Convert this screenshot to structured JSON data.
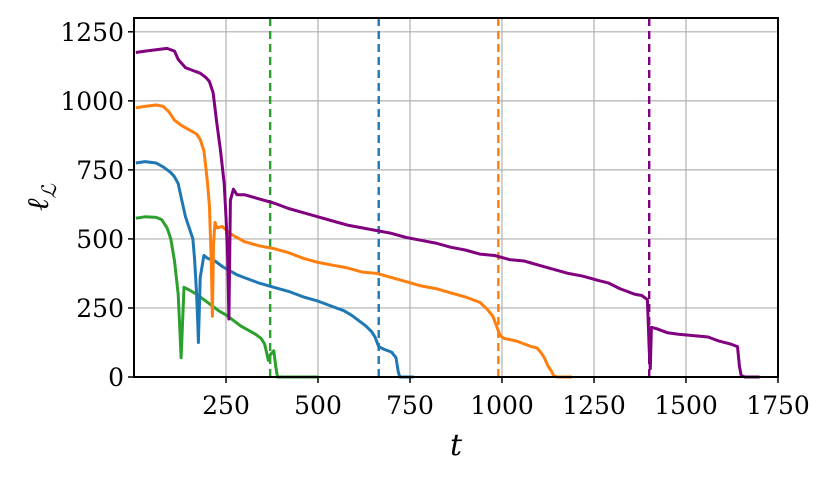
{
  "chart_data": {
    "type": "line",
    "xlabel": "t",
    "ylabel": "ℓ_L",
    "xlim": [
      0,
      1750
    ],
    "ylim": [
      0,
      1300
    ],
    "xticks": [
      250,
      500,
      750,
      1000,
      1250,
      1500,
      1750
    ],
    "yticks": [
      0,
      250,
      500,
      750,
      1000,
      1250
    ],
    "grid": true,
    "colors": {
      "purple": "#800080",
      "orange": "#ff7f0e",
      "blue": "#1f77b4",
      "green": "#2ca02c"
    },
    "series": [
      {
        "color": "#2ca02c",
        "points": [
          [
            5,
            575
          ],
          [
            30,
            580
          ],
          [
            60,
            578
          ],
          [
            75,
            570
          ],
          [
            90,
            540
          ],
          [
            100,
            500
          ],
          [
            110,
            420
          ],
          [
            120,
            300
          ],
          [
            125,
            160
          ],
          [
            128,
            70
          ],
          [
            132,
            200
          ],
          [
            136,
            325
          ],
          [
            150,
            315
          ],
          [
            170,
            300
          ],
          [
            190,
            280
          ],
          [
            210,
            260
          ],
          [
            230,
            240
          ],
          [
            250,
            225
          ],
          [
            270,
            205
          ],
          [
            290,
            185
          ],
          [
            310,
            170
          ],
          [
            330,
            155
          ],
          [
            345,
            140
          ],
          [
            355,
            120
          ],
          [
            360,
            90
          ],
          [
            365,
            60
          ],
          [
            370,
            80
          ],
          [
            380,
            95
          ],
          [
            385,
            40
          ],
          [
            390,
            0
          ],
          [
            500,
            0
          ]
        ]
      },
      {
        "color": "#1f77b4",
        "points": [
          [
            5,
            775
          ],
          [
            30,
            780
          ],
          [
            60,
            775
          ],
          [
            80,
            760
          ],
          [
            100,
            740
          ],
          [
            110,
            725
          ],
          [
            120,
            700
          ],
          [
            130,
            640
          ],
          [
            140,
            580
          ],
          [
            150,
            540
          ],
          [
            160,
            500
          ],
          [
            165,
            420
          ],
          [
            170,
            300
          ],
          [
            173,
            200
          ],
          [
            175,
            125
          ],
          [
            180,
            360
          ],
          [
            190,
            440
          ],
          [
            200,
            430
          ],
          [
            220,
            420
          ],
          [
            240,
            400
          ],
          [
            260,
            385
          ],
          [
            280,
            370
          ],
          [
            300,
            360
          ],
          [
            340,
            340
          ],
          [
            380,
            325
          ],
          [
            420,
            310
          ],
          [
            460,
            290
          ],
          [
            500,
            275
          ],
          [
            540,
            255
          ],
          [
            570,
            240
          ],
          [
            590,
            225
          ],
          [
            610,
            205
          ],
          [
            630,
            185
          ],
          [
            645,
            165
          ],
          [
            655,
            145
          ],
          [
            665,
            110
          ],
          [
            680,
            100
          ],
          [
            700,
            90
          ],
          [
            712,
            70
          ],
          [
            718,
            20
          ],
          [
            722,
            0
          ],
          [
            760,
            0
          ]
        ]
      },
      {
        "color": "#ff7f0e",
        "points": [
          [
            5,
            975
          ],
          [
            30,
            980
          ],
          [
            60,
            985
          ],
          [
            80,
            980
          ],
          [
            95,
            960
          ],
          [
            110,
            930
          ],
          [
            130,
            910
          ],
          [
            150,
            895
          ],
          [
            170,
            880
          ],
          [
            180,
            860
          ],
          [
            190,
            820
          ],
          [
            195,
            760
          ],
          [
            200,
            700
          ],
          [
            205,
            620
          ],
          [
            210,
            420
          ],
          [
            213,
            220
          ],
          [
            216,
            480
          ],
          [
            220,
            560
          ],
          [
            225,
            540
          ],
          [
            240,
            545
          ],
          [
            260,
            520
          ],
          [
            300,
            490
          ],
          [
            340,
            475
          ],
          [
            380,
            465
          ],
          [
            420,
            450
          ],
          [
            460,
            430
          ],
          [
            500,
            415
          ],
          [
            540,
            405
          ],
          [
            580,
            395
          ],
          [
            620,
            380
          ],
          [
            660,
            375
          ],
          [
            700,
            360
          ],
          [
            740,
            345
          ],
          [
            780,
            330
          ],
          [
            820,
            320
          ],
          [
            860,
            305
          ],
          [
            900,
            290
          ],
          [
            940,
            270
          ],
          [
            960,
            245
          ],
          [
            975,
            220
          ],
          [
            985,
            185
          ],
          [
            995,
            150
          ],
          [
            1005,
            140
          ],
          [
            1040,
            130
          ],
          [
            1060,
            120
          ],
          [
            1080,
            110
          ],
          [
            1095,
            105
          ],
          [
            1105,
            90
          ],
          [
            1115,
            70
          ],
          [
            1125,
            40
          ],
          [
            1135,
            20
          ],
          [
            1140,
            5
          ],
          [
            1150,
            0
          ],
          [
            1190,
            0
          ]
        ]
      },
      {
        "color": "#800080",
        "points": [
          [
            5,
            1175
          ],
          [
            30,
            1180
          ],
          [
            60,
            1185
          ],
          [
            90,
            1190
          ],
          [
            110,
            1180
          ],
          [
            120,
            1150
          ],
          [
            140,
            1120
          ],
          [
            160,
            1110
          ],
          [
            180,
            1100
          ],
          [
            195,
            1085
          ],
          [
            205,
            1070
          ],
          [
            215,
            1030
          ],
          [
            225,
            920
          ],
          [
            235,
            820
          ],
          [
            245,
            700
          ],
          [
            250,
            580
          ],
          [
            255,
            420
          ],
          [
            258,
            210
          ],
          [
            262,
            640
          ],
          [
            270,
            680
          ],
          [
            280,
            660
          ],
          [
            300,
            660
          ],
          [
            340,
            645
          ],
          [
            380,
            630
          ],
          [
            420,
            610
          ],
          [
            460,
            595
          ],
          [
            500,
            580
          ],
          [
            540,
            565
          ],
          [
            580,
            550
          ],
          [
            620,
            540
          ],
          [
            660,
            530
          ],
          [
            700,
            520
          ],
          [
            740,
            505
          ],
          [
            780,
            495
          ],
          [
            820,
            485
          ],
          [
            860,
            470
          ],
          [
            900,
            460
          ],
          [
            940,
            445
          ],
          [
            980,
            440
          ],
          [
            1020,
            425
          ],
          [
            1060,
            420
          ],
          [
            1100,
            405
          ],
          [
            1140,
            390
          ],
          [
            1180,
            375
          ],
          [
            1220,
            365
          ],
          [
            1260,
            350
          ],
          [
            1290,
            340
          ],
          [
            1320,
            320
          ],
          [
            1340,
            310
          ],
          [
            1360,
            300
          ],
          [
            1380,
            295
          ],
          [
            1395,
            280
          ],
          [
            1400,
            100
          ],
          [
            1403,
            30
          ],
          [
            1406,
            180
          ],
          [
            1420,
            175
          ],
          [
            1450,
            160
          ],
          [
            1480,
            155
          ],
          [
            1520,
            150
          ],
          [
            1560,
            145
          ],
          [
            1590,
            130
          ],
          [
            1620,
            120
          ],
          [
            1640,
            110
          ],
          [
            1645,
            40
          ],
          [
            1650,
            5
          ],
          [
            1660,
            0
          ],
          [
            1700,
            0
          ]
        ]
      }
    ],
    "vertical_lines": [
      {
        "x": 370,
        "color": "#2ca02c"
      },
      {
        "x": 665,
        "color": "#1f77b4"
      },
      {
        "x": 990,
        "color": "#ff7f0e"
      },
      {
        "x": 1400,
        "color": "#800080"
      }
    ]
  }
}
